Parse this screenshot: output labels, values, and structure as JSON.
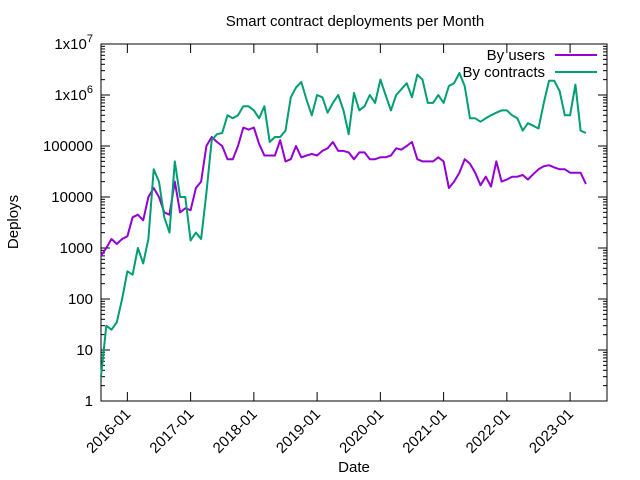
{
  "chart_data": {
    "type": "line",
    "title": "Smart contract deployments per Month",
    "xlabel": "Date",
    "ylabel": "Deploys",
    "yscale": "log",
    "ylim": [
      1,
      10000000
    ],
    "xlim": [
      "2015-08",
      "2023-08"
    ],
    "grid": false,
    "legend_position": "top-right",
    "y_ticks": [
      {
        "value": 1,
        "label": "1",
        "sup": ""
      },
      {
        "value": 10,
        "label": "10",
        "sup": ""
      },
      {
        "value": 100,
        "label": "100",
        "sup": ""
      },
      {
        "value": 1000,
        "label": "1000",
        "sup": ""
      },
      {
        "value": 10000,
        "label": "10000",
        "sup": ""
      },
      {
        "value": 100000,
        "label": "100000",
        "sup": ""
      },
      {
        "value": 1000000,
        "label": "1x10",
        "sup": "6"
      },
      {
        "value": 10000000,
        "label": "1x10",
        "sup": "7"
      }
    ],
    "x_ticks": [
      {
        "value": "2016-01",
        "label": "2016-01"
      },
      {
        "value": "2017-01",
        "label": "2017-01"
      },
      {
        "value": "2018-01",
        "label": "2018-01"
      },
      {
        "value": "2019-01",
        "label": "2019-01"
      },
      {
        "value": "2020-01",
        "label": "2020-01"
      },
      {
        "value": "2021-01",
        "label": "2021-01"
      },
      {
        "value": "2022-01",
        "label": "2022-01"
      },
      {
        "value": "2023-01",
        "label": "2023-01"
      }
    ],
    "x_start": "2015-08",
    "series": [
      {
        "name": "By users",
        "color": "#9400d3",
        "values": [
          700,
          1000,
          1500,
          1200,
          1500,
          1700,
          4000,
          4500,
          3500,
          10000,
          15000,
          10000,
          5000,
          4500,
          20000,
          5000,
          6000,
          5500,
          15000,
          20000,
          100000,
          150000,
          120000,
          100000,
          55000,
          55000,
          100000,
          230000,
          210000,
          230000,
          110000,
          65000,
          65000,
          65000,
          130000,
          50000,
          55000,
          100000,
          60000,
          65000,
          70000,
          65000,
          80000,
          90000,
          120000,
          80000,
          80000,
          75000,
          55000,
          75000,
          75000,
          55000,
          55000,
          60000,
          60000,
          65000,
          90000,
          85000,
          100000,
          120000,
          55000,
          50000,
          50000,
          50000,
          60000,
          50000,
          15000,
          20000,
          30000,
          55000,
          45000,
          30000,
          17000,
          25000,
          16000,
          50000,
          20000,
          22000,
          25000,
          25000,
          27000,
          22000,
          28000,
          35000,
          40000,
          42000,
          38000,
          35000,
          35000,
          30000,
          30000,
          30000,
          18000
        ]
      },
      {
        "name": "By contracts",
        "color": "#009e73",
        "values": [
          3,
          30,
          25,
          35,
          100,
          350,
          300,
          1000,
          500,
          1500,
          35000,
          20000,
          4000,
          2000,
          50000,
          10000,
          10000,
          1400,
          2000,
          1500,
          12000,
          130000,
          170000,
          180000,
          400000,
          350000,
          400000,
          600000,
          600000,
          500000,
          350000,
          600000,
          120000,
          150000,
          150000,
          200000,
          900000,
          1400000,
          1800000,
          800000,
          400000,
          1000000,
          900000,
          450000,
          700000,
          1000000,
          500000,
          170000,
          1100000,
          500000,
          600000,
          1000000,
          700000,
          2000000,
          1000000,
          500000,
          1000000,
          1300000,
          1700000,
          900000,
          2500000,
          2000000,
          700000,
          700000,
          1000000,
          700000,
          1500000,
          1700000,
          2700000,
          1500000,
          350000,
          350000,
          300000,
          350000,
          400000,
          450000,
          500000,
          500000,
          400000,
          350000,
          200000,
          280000,
          250000,
          220000,
          700000,
          1900000,
          1900000,
          1200000,
          400000,
          400000,
          1600000,
          200000,
          180000
        ]
      }
    ]
  }
}
